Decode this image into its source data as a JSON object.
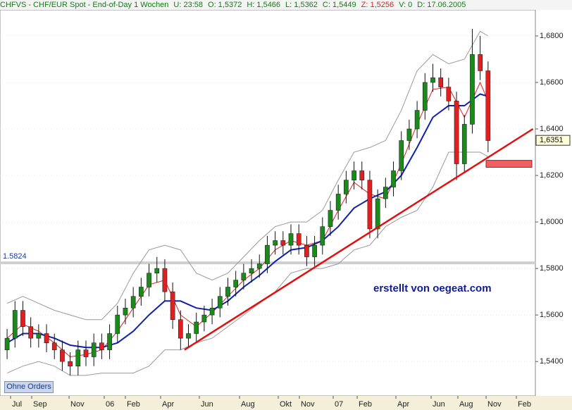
{
  "header": [
    "CHFVS - CHF/EUR Spot - End-of-Day 1 Wochen",
    "U: 23:58",
    "O: 1,5372",
    "H: 1,5466",
    "L: 1,5362",
    "C: 1,5449",
    "Z: 1,5256",
    "V: 0",
    "D: 17.06.2005"
  ],
  "watermark": "erstellt von oegeat.com",
  "button": "Ohne Orders",
  "chart_data": {
    "type": "candlestick",
    "xlim": [
      -0.9,
      67
    ],
    "ylim": [
      1.5252,
      1.6912
    ],
    "yticks": [
      {
        "value": 1.54,
        "label": "1,5400"
      },
      {
        "value": 1.56,
        "label": "1,5600"
      },
      {
        "value": 1.58,
        "label": "1,5800"
      },
      {
        "value": 1.6,
        "label": "1,6000"
      },
      {
        "value": 1.62,
        "label": "1,6200"
      },
      {
        "value": 1.64,
        "label": "1,6400"
      },
      {
        "value": 1.66,
        "label": "1,6600"
      },
      {
        "value": 1.68,
        "label": "1,6800"
      }
    ],
    "xticks": [
      {
        "value": 0.44,
        "label": "Jul"
      },
      {
        "value": 3.12,
        "label": "Sep"
      },
      {
        "value": 7.86,
        "label": "Nov"
      },
      {
        "value": 12.32,
        "label": "06"
      },
      {
        "value": 15.0,
        "label": "Feb"
      },
      {
        "value": 19.47,
        "label": "Apr"
      },
      {
        "value": 24.38,
        "label": "Jun"
      },
      {
        "value": 29.48,
        "label": "Aug"
      },
      {
        "value": 34.39,
        "label": "Okt"
      },
      {
        "value": 37.07,
        "label": "Nov"
      },
      {
        "value": 41.36,
        "label": "07"
      },
      {
        "value": 44.4,
        "label": "Feb"
      },
      {
        "value": 49.31,
        "label": "Apr"
      },
      {
        "value": 53.78,
        "label": "Jun"
      },
      {
        "value": 57.17,
        "label": "Aug"
      },
      {
        "value": 60.75,
        "label": "Nov"
      },
      {
        "value": 64.59,
        "label": "Feb"
      }
    ],
    "up_color": "#1a8a1a",
    "down_color": "#e02020",
    "ohlc": [
      [
        1.545,
        1.554,
        1.541,
        1.55
      ],
      [
        1.55,
        1.566,
        1.546,
        1.562
      ],
      [
        1.562,
        1.566,
        1.551,
        1.555
      ],
      [
        1.555,
        1.559,
        1.546,
        1.55
      ],
      [
        1.55,
        1.556,
        1.546,
        1.552
      ],
      [
        1.552,
        1.556,
        1.544,
        1.548
      ],
      [
        1.548,
        1.552,
        1.541,
        1.545
      ],
      [
        1.545,
        1.549,
        1.536,
        1.54
      ],
      [
        1.54,
        1.544,
        1.534,
        1.538
      ],
      [
        1.538,
        1.549,
        1.534,
        1.545
      ],
      [
        1.545,
        1.549,
        1.538,
        1.542
      ],
      [
        1.542,
        1.552,
        1.538,
        1.548
      ],
      [
        1.548,
        1.552,
        1.541,
        1.545
      ],
      [
        1.545,
        1.556,
        1.541,
        1.552
      ],
      [
        1.552,
        1.564,
        1.548,
        1.56
      ],
      [
        1.56,
        1.567,
        1.556,
        1.563
      ],
      [
        1.563,
        1.572,
        1.559,
        1.568
      ],
      [
        1.568,
        1.576,
        1.564,
        1.572
      ],
      [
        1.572,
        1.582,
        1.568,
        1.578
      ],
      [
        1.578,
        1.585,
        1.574,
        1.58
      ],
      [
        1.58,
        1.584,
        1.566,
        1.57
      ],
      [
        1.57,
        1.574,
        1.554,
        1.558
      ],
      [
        1.558,
        1.562,
        1.545,
        1.55
      ],
      [
        1.55,
        1.556,
        1.546,
        1.552
      ],
      [
        1.552,
        1.561,
        1.548,
        1.557
      ],
      [
        1.557,
        1.564,
        1.553,
        1.56
      ],
      [
        1.56,
        1.567,
        1.556,
        1.563
      ],
      [
        1.563,
        1.572,
        1.559,
        1.568
      ],
      [
        1.568,
        1.576,
        1.564,
        1.572
      ],
      [
        1.572,
        1.579,
        1.568,
        1.575
      ],
      [
        1.575,
        1.582,
        1.571,
        1.578
      ],
      [
        1.578,
        1.584,
        1.574,
        1.58
      ],
      [
        1.58,
        1.586,
        1.576,
        1.582
      ],
      [
        1.582,
        1.594,
        1.578,
        1.59
      ],
      [
        1.59,
        1.596,
        1.586,
        1.592
      ],
      [
        1.592,
        1.596,
        1.586,
        1.59
      ],
      [
        1.59,
        1.599,
        1.586,
        1.595
      ],
      [
        1.595,
        1.599,
        1.586,
        1.59
      ],
      [
        1.59,
        1.594,
        1.581,
        1.585
      ],
      [
        1.585,
        1.594,
        1.581,
        1.59
      ],
      [
        1.59,
        1.602,
        1.586,
        1.598
      ],
      [
        1.598,
        1.609,
        1.594,
        1.605
      ],
      [
        1.605,
        1.616,
        1.601,
        1.612
      ],
      [
        1.612,
        1.622,
        1.608,
        1.618
      ],
      [
        1.618,
        1.626,
        1.614,
        1.622
      ],
      [
        1.622,
        1.626,
        1.614,
        1.618
      ],
      [
        1.618,
        1.622,
        1.593,
        1.597
      ],
      [
        1.597,
        1.614,
        1.593,
        1.61
      ],
      [
        1.61,
        1.619,
        1.606,
        1.615
      ],
      [
        1.615,
        1.626,
        1.611,
        1.622
      ],
      [
        1.622,
        1.639,
        1.618,
        1.635
      ],
      [
        1.635,
        1.644,
        1.631,
        1.64
      ],
      [
        1.64,
        1.652,
        1.636,
        1.648
      ],
      [
        1.648,
        1.664,
        1.644,
        1.66
      ],
      [
        1.66,
        1.668,
        1.656,
        1.662
      ],
      [
        1.662,
        1.666,
        1.654,
        1.658
      ],
      [
        1.658,
        1.662,
        1.648,
        1.652
      ],
      [
        1.652,
        1.656,
        1.618,
        1.625
      ],
      [
        1.625,
        1.646,
        1.621,
        1.642
      ],
      [
        1.642,
        1.683,
        1.638,
        1.672
      ],
      [
        1.672,
        1.68,
        1.661,
        1.665
      ],
      [
        1.665,
        1.669,
        1.63,
        1.635
      ]
    ],
    "lines": [
      {
        "color": "#999999",
        "x": [
          0,
          2,
          4,
          6,
          8,
          10,
          12,
          14,
          16,
          18,
          20,
          22,
          24,
          26,
          28,
          30,
          32,
          34,
          36,
          38,
          40,
          42,
          44,
          46,
          48,
          50,
          52,
          54,
          56,
          58,
          60,
          61
        ],
        "values": [
          1.565,
          1.568,
          1.565,
          1.562,
          1.56,
          1.558,
          1.558,
          1.565,
          1.578,
          1.588,
          1.59,
          1.588,
          1.578,
          1.575,
          1.578,
          1.585,
          1.592,
          1.598,
          1.6,
          1.6,
          1.605,
          1.618,
          1.63,
          1.632,
          1.635,
          1.648,
          1.665,
          1.672,
          1.668,
          1.67,
          1.682,
          1.68
        ]
      },
      {
        "color": "#999999",
        "x": [
          0,
          2,
          4,
          6,
          8,
          10,
          12,
          14,
          16,
          18,
          20,
          22,
          24,
          26,
          28,
          30,
          32,
          34,
          36,
          38,
          40,
          42,
          44,
          46,
          48,
          50,
          52,
          54,
          56,
          58,
          60,
          61
        ],
        "values": [
          1.535,
          1.538,
          1.54,
          1.538,
          1.534,
          1.534,
          1.535,
          1.535,
          1.535,
          1.538,
          1.545,
          1.545,
          1.548,
          1.55,
          1.555,
          1.56,
          1.565,
          1.57,
          1.578,
          1.58,
          1.58,
          1.582,
          1.588,
          1.59,
          1.598,
          1.602,
          1.605,
          1.615,
          1.63,
          1.63,
          1.63,
          1.628
        ]
      },
      {
        "color": "#e02020",
        "x": [
          0,
          2,
          4,
          6,
          8,
          10,
          12,
          14,
          16,
          18,
          20,
          22,
          24,
          26,
          28,
          30,
          32,
          34,
          36,
          38,
          40,
          42,
          44,
          46,
          48,
          50,
          52,
          54,
          56,
          58,
          60,
          61
        ],
        "values": [
          1.55,
          1.556,
          1.553,
          1.548,
          1.542,
          1.543,
          1.545,
          1.553,
          1.563,
          1.573,
          1.575,
          1.56,
          1.555,
          1.561,
          1.568,
          1.575,
          1.58,
          1.588,
          1.592,
          1.59,
          1.592,
          1.605,
          1.617,
          1.612,
          1.61,
          1.625,
          1.642,
          1.657,
          1.658,
          1.645,
          1.66,
          1.652
        ]
      },
      {
        "color": "#1020b0",
        "x": [
          0,
          2,
          4,
          6,
          8,
          10,
          12,
          14,
          16,
          18,
          20,
          22,
          24,
          26,
          28,
          30,
          32,
          34,
          36,
          38,
          40,
          42,
          44,
          46,
          48,
          50,
          52,
          54,
          56,
          58,
          60,
          61
        ],
        "values": [
          1.548,
          1.552,
          1.552,
          1.55,
          1.547,
          1.546,
          1.546,
          1.548,
          1.553,
          1.56,
          1.566,
          1.566,
          1.563,
          1.562,
          1.566,
          1.572,
          1.577,
          1.583,
          1.588,
          1.589,
          1.592,
          1.598,
          1.606,
          1.61,
          1.613,
          1.62,
          1.632,
          1.645,
          1.65,
          1.65,
          1.655,
          1.654
        ]
      }
    ],
    "trendline": {
      "color": "#e01010",
      "x": [
        22.5,
        66.7
      ],
      "values": [
        1.545,
        1.64
      ]
    },
    "hline": 1.5824,
    "zone": {
      "color": "#f06060",
      "values": [
        1.6235,
        1.6265
      ]
    },
    "last_price": {
      "value": 1.6351,
      "label": "1,6351"
    }
  }
}
